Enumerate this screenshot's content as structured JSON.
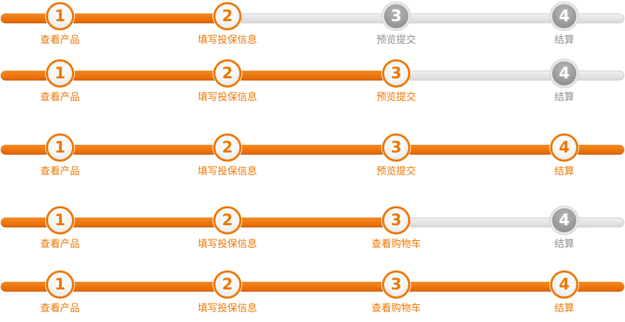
{
  "colors": {
    "accent": "#ee7600",
    "track_inactive": "#dcdcdc",
    "circle_inactive": "#9a9a9a",
    "label_inactive": "#8e8e8e"
  },
  "steppers": [
    {
      "current_step": 2,
      "steps": [
        {
          "number": "1",
          "label": "查看产品"
        },
        {
          "number": "2",
          "label": "填写投保信息"
        },
        {
          "number": "3",
          "label": "预览提交"
        },
        {
          "number": "4",
          "label": "结算"
        }
      ]
    },
    {
      "current_step": 3,
      "steps": [
        {
          "number": "1",
          "label": "查看产品"
        },
        {
          "number": "2",
          "label": "填写投保信息"
        },
        {
          "number": "3",
          "label": "预览提交"
        },
        {
          "number": "4",
          "label": "结算"
        }
      ]
    },
    {
      "current_step": 4,
      "steps": [
        {
          "number": "1",
          "label": "查看产品"
        },
        {
          "number": "2",
          "label": "填写投保信息"
        },
        {
          "number": "3",
          "label": "预览提交"
        },
        {
          "number": "4",
          "label": "结算"
        }
      ]
    },
    {
      "current_step": 3,
      "steps": [
        {
          "number": "1",
          "label": "查看产品"
        },
        {
          "number": "2",
          "label": "填写投保信息"
        },
        {
          "number": "3",
          "label": "查看购物车"
        },
        {
          "number": "4",
          "label": "结算"
        }
      ]
    },
    {
      "current_step": 4,
      "steps": [
        {
          "number": "1",
          "label": "查看产品"
        },
        {
          "number": "2",
          "label": "填写投保信息"
        },
        {
          "number": "3",
          "label": "查看购物车"
        },
        {
          "number": "4",
          "label": "结算"
        }
      ]
    }
  ]
}
